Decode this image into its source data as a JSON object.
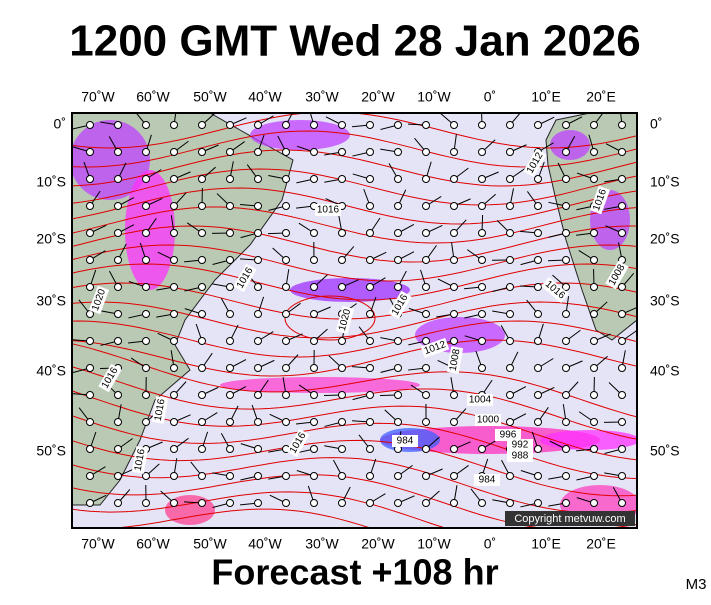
{
  "title": "1200 GMT Wed 28 Jan 2026",
  "lon_labels": [
    "70˚W",
    "60˚W",
    "50˚W",
    "40˚W",
    "30˚W",
    "20˚W",
    "10˚W",
    "0˚",
    "10˚E",
    "20˚E"
  ],
  "lat_labels": [
    "0˚",
    "10˚S",
    "20˚S",
    "30˚S",
    "40˚S",
    "50˚S"
  ],
  "isobar_labels": [
    "1012",
    "1016",
    "1016",
    "1020",
    "1020",
    "1016",
    "1016",
    "1008",
    "1016",
    "1012",
    "1008",
    "1004",
    "1000",
    "996",
    "992",
    "988",
    "984",
    "984",
    "1016",
    "1016",
    "1016",
    "1016"
  ],
  "footer": "Forecast +108 hr",
  "copyright": "Copyright metvuw.com",
  "model": "M3"
}
